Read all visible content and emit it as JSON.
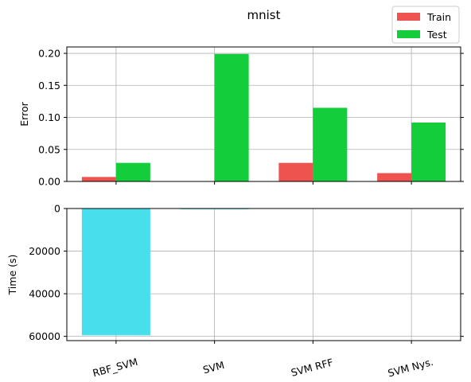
{
  "chart_data": [
    {
      "type": "bar",
      "title": "mnist",
      "xlabel": "",
      "ylabel": "Error",
      "categories": [
        "RBF_SVM",
        "SVM",
        "SVM RFF",
        "SVM Nys."
      ],
      "series": [
        {
          "name": "Train",
          "color": "#ee5350",
          "values": [
            0.007,
            0.0,
            0.029,
            0.013
          ]
        },
        {
          "name": "Test",
          "color": "#13cd3a",
          "values": [
            0.029,
            0.199,
            0.115,
            0.092
          ]
        }
      ],
      "ylim": [
        0,
        0.21
      ],
      "yticks": [
        "0.00",
        "0.05",
        "0.10",
        "0.15",
        "0.20"
      ],
      "grid": true,
      "legend": "top-right"
    },
    {
      "type": "bar",
      "title": "",
      "xlabel": "",
      "ylabel": "Time (s)",
      "categories": [
        "RBF_SVM",
        "SVM",
        "SVM RFF",
        "SVM Nys."
      ],
      "series": [
        {
          "color": "#48dfec",
          "values": [
            59500,
            350,
            0,
            0
          ]
        }
      ],
      "ylim": [
        0,
        62000
      ],
      "y_inverted": true,
      "yticks": [
        "0",
        "20000",
        "40000",
        "60000"
      ],
      "grid": true
    }
  ]
}
